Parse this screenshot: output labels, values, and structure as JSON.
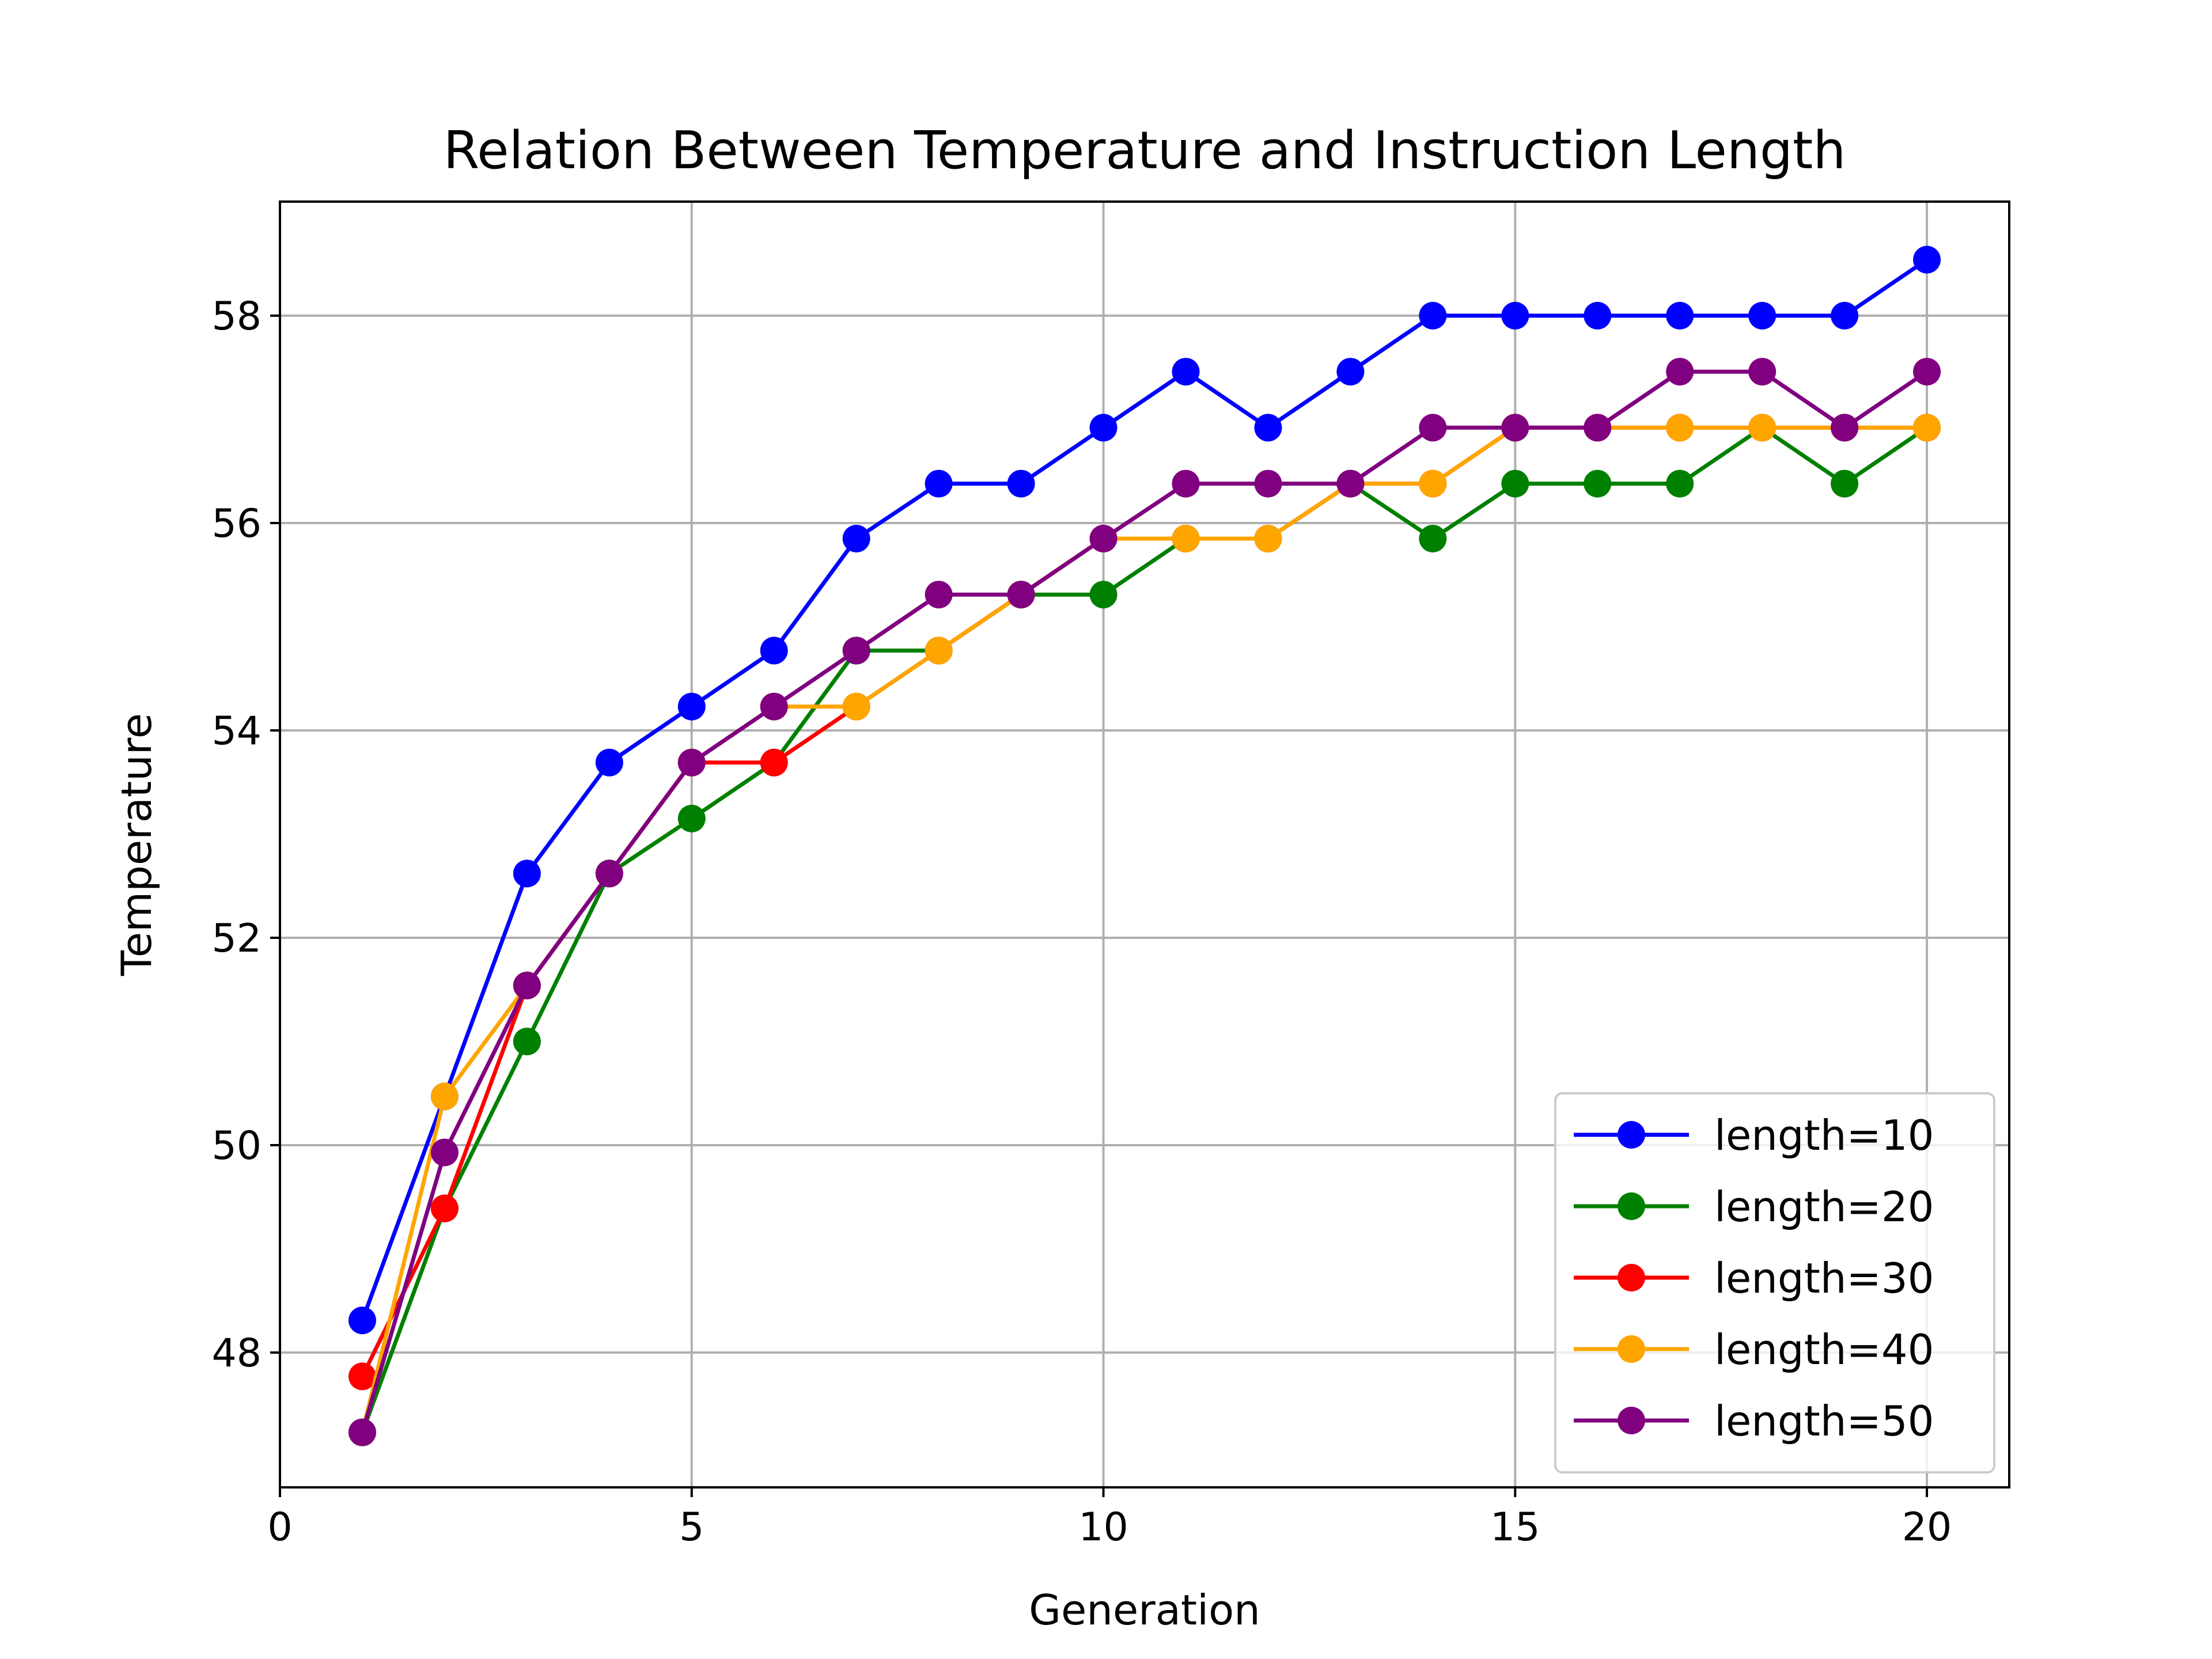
{
  "chart_data": {
    "type": "line",
    "title": "Relation Between Temperature and Instruction Length",
    "xlabel": "Generation",
    "ylabel": "Temperature",
    "xlim": [
      0,
      21
    ],
    "ylim": [
      46.7,
      59.1
    ],
    "xticks": [
      0,
      5,
      10,
      15,
      20
    ],
    "yticks": [
      48,
      50,
      52,
      54,
      56,
      58
    ],
    "grid": true,
    "legend_position": "lower-right",
    "x": [
      1,
      2,
      3,
      4,
      5,
      6,
      7,
      8,
      9,
      10,
      11,
      12,
      13,
      14,
      15,
      16,
      17,
      18,
      19,
      20
    ],
    "series": [
      {
        "name": "length=10",
        "color": "#0000ff",
        "values": [
          48.31,
          50.47,
          52.62,
          53.69,
          54.23,
          54.77,
          55.85,
          56.38,
          56.38,
          56.92,
          57.46,
          56.92,
          57.46,
          58.0,
          58.0,
          58.0,
          58.0,
          58.0,
          58.0,
          58.54
        ]
      },
      {
        "name": "length=20",
        "color": "#008000",
        "values": [
          47.23,
          49.39,
          51.0,
          52.62,
          53.15,
          53.69,
          54.77,
          54.77,
          55.31,
          55.31,
          55.85,
          55.85,
          56.38,
          55.85,
          56.38,
          56.38,
          56.38,
          56.92,
          56.38,
          56.92
        ]
      },
      {
        "name": "length=30",
        "color": "#ff0000",
        "values": [
          47.77,
          49.39,
          51.54,
          52.62,
          53.69,
          53.69,
          54.23,
          54.77,
          55.31,
          55.85,
          55.85,
          55.85,
          56.38,
          56.38,
          56.92,
          56.92,
          56.92,
          56.92,
          56.92,
          56.92
        ]
      },
      {
        "name": "length=40",
        "color": "#ffa500",
        "values": [
          47.23,
          50.47,
          51.54,
          52.62,
          53.69,
          54.23,
          54.23,
          54.77,
          55.31,
          55.85,
          55.85,
          55.85,
          56.38,
          56.38,
          56.92,
          56.92,
          56.92,
          56.92,
          56.92,
          56.92
        ]
      },
      {
        "name": "length=50",
        "color": "#800080",
        "values": [
          47.23,
          49.93,
          51.54,
          52.62,
          53.69,
          54.23,
          54.77,
          55.31,
          55.31,
          55.85,
          56.38,
          56.38,
          56.38,
          56.92,
          56.92,
          56.92,
          57.46,
          57.46,
          56.92,
          57.46
        ]
      }
    ]
  }
}
